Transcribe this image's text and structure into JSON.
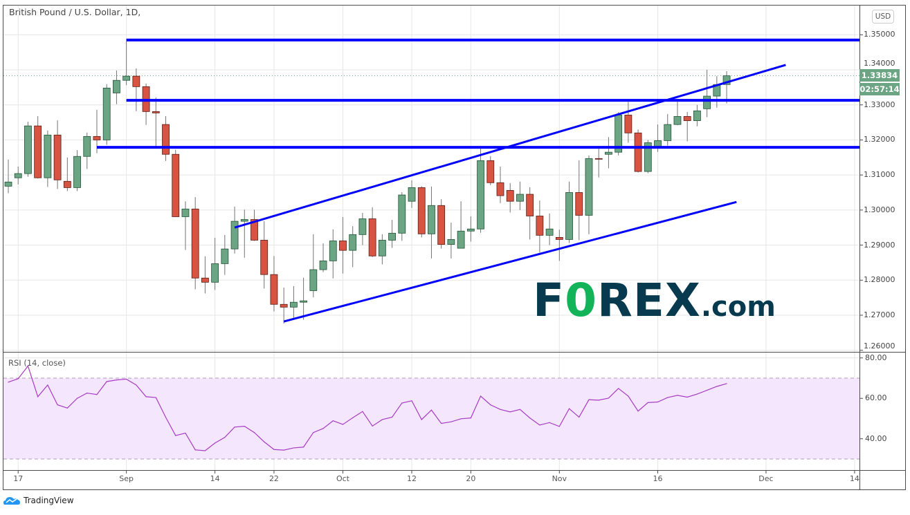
{
  "header": {
    "title": "British Pound / U.S. Dollar, 1D,",
    "currency_button": "USD"
  },
  "price_axis": {
    "labels": [
      "1.35000",
      "1.34000",
      "1.33000",
      "1.32000",
      "1.31000",
      "1.30000",
      "1.29000",
      "1.28000",
      "1.27000",
      "1.26000"
    ],
    "current_price": "1.33834",
    "countdown": "02:57:14",
    "current_price_color": "#6ba583"
  },
  "watermark": {
    "brand": "FOREX",
    "suffix": ".com"
  },
  "footer": {
    "brand": "TradingView"
  },
  "colors": {
    "up": "#6ba583",
    "down": "#d75442",
    "up_border": "#225437",
    "down_border": "#5b1a13",
    "wick": "#737375",
    "drawing": "#0000ff",
    "rsi_line": "#a83cc4",
    "rsi_band": "#f3e6fd"
  },
  "chart_data": [
    {
      "type": "candlestick",
      "title": "British Pound / U.S. Dollar, 1D,",
      "ylim": [
        1.26,
        1.35
      ],
      "grid": true,
      "candle_fields": [
        "date",
        "open",
        "high",
        "low",
        "close"
      ],
      "candles": [
        [
          "Aug 14",
          1.3068,
          1.3144,
          1.3048,
          1.308
        ],
        [
          "Aug 17",
          1.3092,
          1.3124,
          1.3073,
          1.3104
        ],
        [
          "Aug 18",
          1.3104,
          1.3252,
          1.3095,
          1.324
        ],
        [
          "Aug 19",
          1.324,
          1.3268,
          1.309,
          1.3092
        ],
        [
          "Aug 20",
          1.3092,
          1.3227,
          1.3066,
          1.3214
        ],
        [
          "Aug 21",
          1.3214,
          1.3256,
          1.306,
          1.3086
        ],
        [
          "Aug 24",
          1.3082,
          1.315,
          1.3054,
          1.3064
        ],
        [
          "Aug 25",
          1.3064,
          1.3171,
          1.3054,
          1.3153
        ],
        [
          "Aug 26",
          1.3153,
          1.3221,
          1.3117,
          1.321
        ],
        [
          "Aug 27",
          1.321,
          1.3286,
          1.3162,
          1.32
        ],
        [
          "Aug 28",
          1.32,
          1.3359,
          1.3186,
          1.3348
        ],
        [
          "Aug 31",
          1.3334,
          1.3398,
          1.3302,
          1.337
        ],
        [
          "Sep 1",
          1.337,
          1.3482,
          1.3356,
          1.3382
        ],
        [
          "Sep 2",
          1.3382,
          1.3404,
          1.3282,
          1.3352
        ],
        [
          "Sep 3",
          1.3352,
          1.3361,
          1.3243,
          1.3281
        ],
        [
          "Sep 4",
          1.3281,
          1.3321,
          1.3181,
          1.3277
        ],
        [
          "Sep 7",
          1.3244,
          1.3268,
          1.314,
          1.3159
        ],
        [
          "Sep 8",
          1.3159,
          1.3172,
          1.2981,
          1.2981
        ],
        [
          "Sep 9",
          1.2981,
          1.3025,
          1.2886,
          1.3003
        ],
        [
          "Sep 10",
          1.3003,
          1.3037,
          1.2774,
          1.2806
        ],
        [
          "Sep 11",
          1.2806,
          1.2868,
          1.2762,
          1.2794
        ],
        [
          "Sep 14",
          1.2794,
          1.2921,
          1.2772,
          1.2847
        ],
        [
          "Sep 15",
          1.2847,
          1.2929,
          1.2815,
          1.2889
        ],
        [
          "Sep 16",
          1.2889,
          1.301,
          1.2876,
          1.2968
        ],
        [
          "Sep 17",
          1.2968,
          1.3001,
          1.2864,
          1.2973
        ],
        [
          "Sep 18",
          1.2973,
          1.3001,
          1.2912,
          1.2914
        ],
        [
          "Sep 21",
          1.2914,
          1.2968,
          1.2776,
          1.2816
        ],
        [
          "Sep 22",
          1.2816,
          1.2869,
          1.2711,
          1.2731
        ],
        [
          "Sep 23",
          1.2731,
          1.2779,
          1.2676,
          1.2723
        ],
        [
          "Sep 24",
          1.2723,
          1.2783,
          1.2692,
          1.2737
        ],
        [
          "Sep 25",
          1.2737,
          1.2807,
          1.2687,
          1.2741
        ],
        [
          "Sep 28",
          1.277,
          1.2931,
          1.2751,
          1.283
        ],
        [
          "Sep 29",
          1.283,
          1.2905,
          1.2823,
          1.2855
        ],
        [
          "Sep 30",
          1.2855,
          1.2945,
          1.2805,
          1.2912
        ],
        [
          "Oct 1",
          1.2912,
          1.298,
          1.2819,
          1.2885
        ],
        [
          "Oct 2",
          1.2885,
          1.2954,
          1.2837,
          1.293
        ],
        [
          "Oct 5",
          1.293,
          1.2992,
          1.29,
          1.2975
        ],
        [
          "Oct 6",
          1.2975,
          1.3008,
          1.2866,
          1.2869
        ],
        [
          "Oct 7",
          1.2869,
          1.2931,
          1.2845,
          1.2914
        ],
        [
          "Oct 8",
          1.2914,
          1.2972,
          1.2892,
          1.2934
        ],
        [
          "Oct 9",
          1.2934,
          1.3051,
          1.2912,
          1.3043
        ],
        [
          "Oct 12",
          1.3025,
          1.3085,
          1.3006,
          1.3064
        ],
        [
          "Oct 13",
          1.3064,
          1.3068,
          1.2922,
          1.2932
        ],
        [
          "Oct 14",
          1.2932,
          1.3067,
          1.2862,
          1.3013
        ],
        [
          "Oct 15",
          1.3013,
          1.3031,
          1.289,
          1.2902
        ],
        [
          "Oct 16",
          1.2902,
          1.2964,
          1.2862,
          1.2916
        ],
        [
          "Oct 19",
          1.2891,
          1.3025,
          1.2891,
          1.294
        ],
        [
          "Oct 20",
          1.294,
          1.2982,
          1.291,
          1.2946
        ],
        [
          "Oct 21",
          1.2946,
          1.3179,
          1.2935,
          1.3141
        ],
        [
          "Oct 22",
          1.3141,
          1.3154,
          1.3071,
          1.3078
        ],
        [
          "Oct 23",
          1.3078,
          1.3124,
          1.302,
          1.3041
        ],
        [
          "Oct 26",
          1.3056,
          1.3077,
          1.2993,
          1.3025
        ],
        [
          "Oct 27",
          1.3025,
          1.3081,
          1.3,
          1.3045
        ],
        [
          "Oct 28",
          1.3045,
          1.3065,
          1.2916,
          1.2983
        ],
        [
          "Oct 29",
          1.2983,
          1.3027,
          1.2879,
          1.2928
        ],
        [
          "Oct 30",
          1.2928,
          1.299,
          1.29,
          1.2946
        ],
        [
          "Nov 2",
          1.2922,
          1.2944,
          1.2855,
          1.2916
        ],
        [
          "Nov 3",
          1.2916,
          1.3081,
          1.2906,
          1.305
        ],
        [
          "Nov 4",
          1.305,
          1.3142,
          1.2914,
          1.2985
        ],
        [
          "Nov 5",
          1.2985,
          1.3156,
          1.2931,
          1.3147
        ],
        [
          "Nov 6",
          1.3147,
          1.3175,
          1.3093,
          1.3145
        ],
        [
          "Nov 9",
          1.3159,
          1.3208,
          1.3119,
          1.3165
        ],
        [
          "Nov 10",
          1.3165,
          1.3279,
          1.3156,
          1.3271
        ],
        [
          "Nov 11",
          1.3271,
          1.3309,
          1.3192,
          1.322
        ],
        [
          "Nov 12",
          1.322,
          1.323,
          1.3107,
          1.311
        ],
        [
          "Nov 13",
          1.311,
          1.32,
          1.3105,
          1.3192
        ],
        [
          "Nov 16",
          1.3179,
          1.3244,
          1.3166,
          1.3198
        ],
        [
          "Nov 17",
          1.3198,
          1.3274,
          1.3184,
          1.3244
        ],
        [
          "Nov 18",
          1.3244,
          1.3309,
          1.3242,
          1.3267
        ],
        [
          "Nov 19",
          1.3267,
          1.328,
          1.3196,
          1.3255
        ],
        [
          "Nov 20",
          1.3255,
          1.33,
          1.3239,
          1.3283
        ],
        [
          "Nov 23",
          1.3289,
          1.34,
          1.3265,
          1.3325
        ],
        [
          "Nov 24",
          1.3325,
          1.3382,
          1.3292,
          1.3358
        ],
        [
          "Nov 25",
          1.3358,
          1.3396,
          1.3304,
          1.3383
        ]
      ],
      "last_price": 1.33834,
      "drawings": [
        {
          "kind": "horizontal",
          "from": "Sep 1",
          "price": 1.3485
        },
        {
          "kind": "horizontal",
          "from": "Sep 1",
          "price": 1.3313
        },
        {
          "kind": "horizontal",
          "from": "Aug 27",
          "price": 1.3179
        },
        {
          "kind": "trendline",
          "points": [
            [
              "Sep 16",
              1.295
            ],
            [
              "Dec 3",
              1.3414
            ]
          ]
        },
        {
          "kind": "trendline",
          "points": [
            [
              "Sep 23",
              1.2682
            ],
            [
              "Nov 26",
              1.3023
            ]
          ]
        }
      ],
      "x_ticks": [
        {
          "date": "Aug 17",
          "label": "17"
        },
        {
          "date": "Sep 1",
          "label": "Sep"
        },
        {
          "date": "Sep 14",
          "label": "14"
        },
        {
          "date": "Sep 22",
          "label": "22"
        },
        {
          "date": "Oct 1",
          "label": "Oct"
        },
        {
          "date": "Oct 12",
          "label": "12"
        },
        {
          "date": "Oct 20",
          "label": "20"
        },
        {
          "date": "Nov 2",
          "label": "Nov"
        },
        {
          "date": "Nov 16",
          "label": "16"
        },
        {
          "date": "Dec 1",
          "label": "Dec"
        },
        {
          "date": "Dec 14",
          "label": "14"
        }
      ]
    },
    {
      "type": "line",
      "title": "RSI (14, close)",
      "ylim": [
        25,
        82
      ],
      "band": [
        30,
        70
      ],
      "y_tick_labels": [
        "80.00",
        "60.00",
        "40.00"
      ],
      "values": [
        68.0,
        69.7,
        76.0,
        60.8,
        66.6,
        56.8,
        55.2,
        60.0,
        62.6,
        61.9,
        68.3,
        69.1,
        69.5,
        66.6,
        60.8,
        60.4,
        50.6,
        41.6,
        42.8,
        34.5,
        34.1,
        37.9,
        40.7,
        45.8,
        46.2,
        43.1,
        38.5,
        34.7,
        34.4,
        35.5,
        35.9,
        43.1,
        45.1,
        48.9,
        47.1,
        50.4,
        53.5,
        46.3,
        49.5,
        50.7,
        57.7,
        58.8,
        49.5,
        54.2,
        47.6,
        48.4,
        49.9,
        50.3,
        61.1,
        56.8,
        54.5,
        53.3,
        54.5,
        50.3,
        46.8,
        48.0,
        46.1,
        54.9,
        50.7,
        59.3,
        59.1,
        60.1,
        64.9,
        61.1,
        53.7,
        57.9,
        58.2,
        60.4,
        61.5,
        60.6,
        62.1,
        64.0,
        65.9,
        67.3
      ]
    }
  ]
}
